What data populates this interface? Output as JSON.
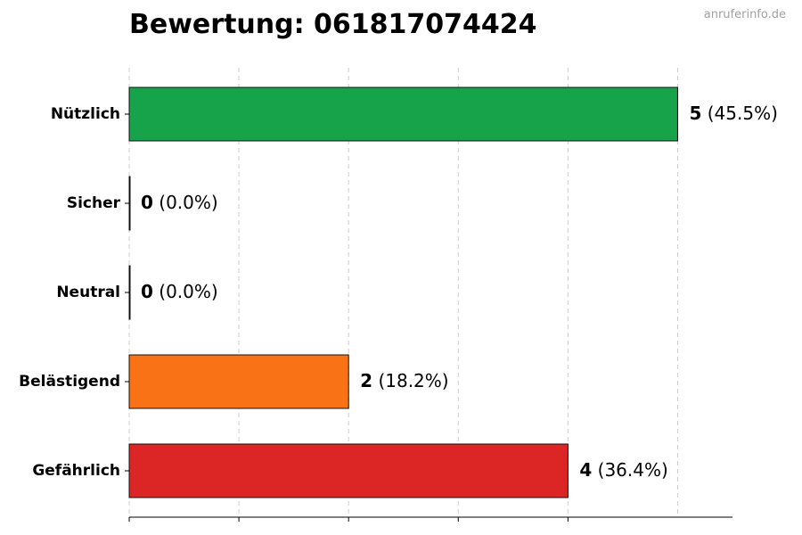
{
  "chart_data": {
    "type": "bar",
    "orientation": "horizontal",
    "title": "Bewertung: 061817074424",
    "watermark": "anruferinfo.de",
    "xlabel": "",
    "ylabel": "",
    "xlim": [
      0,
      5.5
    ],
    "grid": "vertical dashed",
    "legend": "none",
    "categories": [
      "Nützlich",
      "Sicher",
      "Neutral",
      "Belästigend",
      "Gefährlich"
    ],
    "values": [
      5,
      0,
      0,
      2,
      4
    ],
    "value_labels": [
      "5",
      "0",
      "0",
      "2",
      "4"
    ],
    "percent_labels": [
      "(45.5%)",
      "(0.0%)",
      "(0.0%)",
      "(18.2%)",
      "(36.4%)"
    ],
    "colors": [
      "#16a34a",
      "#6b7280",
      "#3b82f6",
      "#f97316",
      "#dc2626"
    ]
  }
}
